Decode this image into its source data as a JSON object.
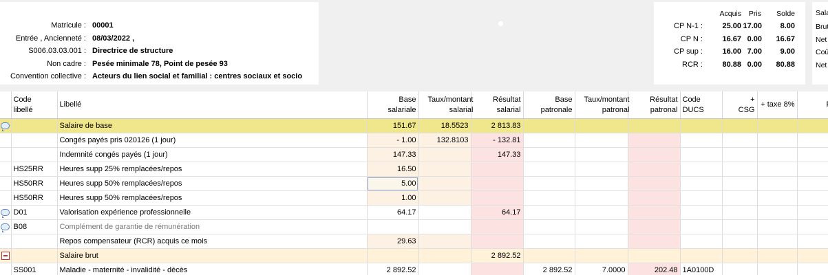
{
  "employee": {
    "rows": [
      {
        "label": "Matricule :",
        "value": "00001"
      },
      {
        "label": "Entrée , Ancienneté :",
        "value": "08/03/2022 ,"
      },
      {
        "label": "S006.03.03.001 :",
        "value": "Directrice de structure"
      },
      {
        "label": "Non cadre :",
        "value": "Pesée minimale 78, Point de pesée 93"
      },
      {
        "label": "Convention collective :",
        "value": "Acteurs du lien social et familial : centres sociaux et socio"
      }
    ]
  },
  "cp": {
    "headers": {
      "acquis": "Acquis",
      "pris": "Pris",
      "solde": "Solde"
    },
    "rows": [
      {
        "label": "CP N-1 :",
        "acquis": "25.00",
        "pris": "17.00",
        "solde": "8.00"
      },
      {
        "label": "CP N :",
        "acquis": "16.67",
        "pris": "0.00",
        "solde": "16.67"
      },
      {
        "label": "CP sup :",
        "acquis": "16.00",
        "pris": "7.00",
        "solde": "9.00"
      },
      {
        "label": "RCR :",
        "acquis": "80.88",
        "pris": "0.00",
        "solde": "80.88"
      }
    ]
  },
  "salary_panel": {
    "header": "Sala",
    "items": [
      "Brut",
      "Net",
      "Coû",
      "Net"
    ]
  },
  "grid": {
    "headers": {
      "code": "Code libellé",
      "libelle": "Libellé",
      "base_sal": "Base salariale",
      "taux_sal": "Taux/montant salarial",
      "res_sal": "Résultat salarial",
      "base_pat": "Base patronale",
      "taux_pat": "Taux/montant patronal",
      "res_pat": "Résultat patronal",
      "ducs": "Code DUCS",
      "csg": "+ CSG",
      "taxe": "+ taxe 8%",
      "r": "R"
    },
    "rows": [
      {
        "icon": "chat",
        "code": "",
        "libelle": "Salaire de base",
        "base_sal": "151.67",
        "taux_sal": "18.5523",
        "res_sal": "2 813.83",
        "base_pat": "",
        "taux_pat": "",
        "res_pat": "",
        "ducs": "",
        "style": "base"
      },
      {
        "icon": "",
        "code": "",
        "libelle": "Congés payés pris 020126 (1 jour)",
        "base_sal": "- 1.00",
        "taux_sal": "132.8103",
        "res_sal": "- 132.81",
        "base_pat": "",
        "taux_pat": "",
        "res_pat": "",
        "ducs": "",
        "style": ""
      },
      {
        "icon": "",
        "code": "",
        "libelle": "Indemnité congés payés (1 jour)",
        "base_sal": "147.33",
        "taux_sal": "",
        "res_sal": "147.33",
        "base_pat": "",
        "taux_pat": "",
        "res_pat": "",
        "ducs": "",
        "style": ""
      },
      {
        "icon": "",
        "code": "HS25RR",
        "libelle": "Heures supp 25% remplacées/repos",
        "base_sal": "16.50",
        "taux_sal": "",
        "res_sal": "",
        "base_pat": "",
        "taux_pat": "",
        "res_pat": "",
        "ducs": "",
        "style": ""
      },
      {
        "icon": "",
        "code": "HS50RR",
        "libelle": "Heures supp 50% remplacées/repos",
        "base_sal": "5.00",
        "taux_sal": "",
        "res_sal": "",
        "base_pat": "",
        "taux_pat": "",
        "res_pat": "",
        "ducs": "",
        "style": "selected"
      },
      {
        "icon": "",
        "code": "HS50RR",
        "libelle": "Heures supp 50% remplacées/repos",
        "base_sal": "1.00",
        "taux_sal": "",
        "res_sal": "",
        "base_pat": "",
        "taux_pat": "",
        "res_pat": "",
        "ducs": "",
        "style": ""
      },
      {
        "icon": "chat",
        "code": "D01",
        "libelle": "Valorisation expérience professionnelle",
        "base_sal": "64.17",
        "taux_sal": "",
        "res_sal": "64.17",
        "base_pat": "",
        "taux_pat": "",
        "res_pat": "",
        "ducs": "",
        "style": "plain"
      },
      {
        "icon": "chat",
        "code": "B08",
        "libelle": "Complément de garantie de rémunération",
        "base_sal": "",
        "taux_sal": "",
        "res_sal": "",
        "base_pat": "",
        "taux_pat": "",
        "res_pat": "",
        "ducs": "",
        "style": "muted"
      },
      {
        "icon": "",
        "code": "",
        "libelle": "Repos compensateur (RCR) acquis ce mois",
        "base_sal": "29.63",
        "taux_sal": "",
        "res_sal": "",
        "base_pat": "",
        "taux_pat": "",
        "res_pat": "",
        "ducs": "",
        "style": ""
      },
      {
        "icon": "minus",
        "code": "",
        "libelle": "Salaire brut",
        "base_sal": "",
        "taux_sal": "",
        "res_sal": "2 892.52",
        "base_pat": "",
        "taux_pat": "",
        "res_pat": "",
        "ducs": "",
        "style": "brut"
      },
      {
        "icon": "",
        "code": "SS001",
        "libelle": "Maladie - maternité - invalidité - décès",
        "base_sal": "2 892.52",
        "taux_sal": "",
        "res_sal": "",
        "base_pat": "2 892.52",
        "taux_pat": "7.0000",
        "res_pat": "202.48",
        "ducs": "1A0100D",
        "style": "plain"
      }
    ]
  },
  "colors": {
    "base_row": "#f0e68c",
    "brut_row": "#fff2d9",
    "salarial_cell": "#fdf1e3",
    "result_cell": "#fde2e2"
  }
}
